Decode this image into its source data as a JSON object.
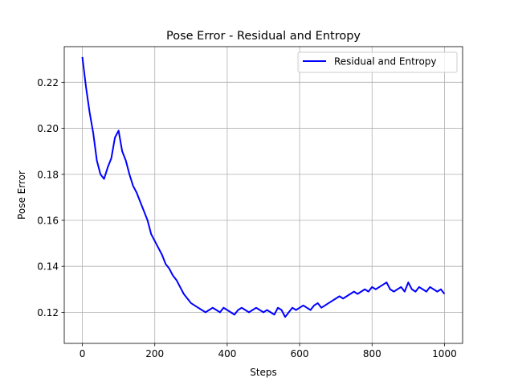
{
  "chart_data": {
    "type": "line",
    "title": "Pose Error - Residual and Entropy",
    "xlabel": "Steps",
    "ylabel": "Pose Error",
    "xlim": [
      -50,
      1050
    ],
    "ylim": [
      0.1065,
      0.2355
    ],
    "xticks": [
      0,
      200,
      400,
      600,
      800,
      1000
    ],
    "xtick_labels": [
      "0",
      "200",
      "400",
      "600",
      "800",
      "1000"
    ],
    "yticks": [
      0.12,
      0.14,
      0.16,
      0.18,
      0.2,
      0.22
    ],
    "ytick_labels": [
      "0.12",
      "0.14",
      "0.16",
      "0.18",
      "0.20",
      "0.22"
    ],
    "grid": true,
    "legend_position": "top-right",
    "series": [
      {
        "name": "Residual and Entropy",
        "color": "#0000ff",
        "x": [
          0,
          10,
          20,
          30,
          40,
          50,
          60,
          70,
          80,
          90,
          100,
          110,
          120,
          130,
          140,
          150,
          160,
          170,
          180,
          190,
          200,
          210,
          220,
          230,
          240,
          250,
          260,
          270,
          280,
          290,
          300,
          310,
          320,
          330,
          340,
          350,
          360,
          370,
          380,
          390,
          400,
          410,
          420,
          430,
          440,
          450,
          460,
          470,
          480,
          490,
          500,
          510,
          520,
          530,
          540,
          550,
          560,
          570,
          580,
          590,
          600,
          610,
          620,
          630,
          640,
          650,
          660,
          670,
          680,
          690,
          700,
          710,
          720,
          730,
          740,
          750,
          760,
          770,
          780,
          790,
          800,
          810,
          820,
          830,
          840,
          850,
          860,
          870,
          880,
          890,
          900,
          910,
          920,
          930,
          940,
          950,
          960,
          970,
          980,
          990,
          1000
        ],
        "y": [
          0.231,
          0.218,
          0.207,
          0.198,
          0.186,
          0.18,
          0.178,
          0.183,
          0.187,
          0.196,
          0.199,
          0.19,
          0.186,
          0.18,
          0.175,
          0.172,
          0.168,
          0.164,
          0.16,
          0.154,
          0.151,
          0.148,
          0.145,
          0.141,
          0.139,
          0.136,
          0.134,
          0.131,
          0.128,
          0.126,
          0.124,
          0.123,
          0.122,
          0.121,
          0.12,
          0.121,
          0.122,
          0.121,
          0.12,
          0.122,
          0.121,
          0.12,
          0.119,
          0.121,
          0.122,
          0.121,
          0.12,
          0.121,
          0.122,
          0.121,
          0.12,
          0.121,
          0.12,
          0.119,
          0.122,
          0.121,
          0.118,
          0.12,
          0.122,
          0.121,
          0.122,
          0.123,
          0.122,
          0.121,
          0.123,
          0.124,
          0.122,
          0.123,
          0.124,
          0.125,
          0.126,
          0.127,
          0.126,
          0.127,
          0.128,
          0.129,
          0.128,
          0.129,
          0.13,
          0.129,
          0.131,
          0.13,
          0.131,
          0.132,
          0.133,
          0.13,
          0.129,
          0.13,
          0.131,
          0.129,
          0.133,
          0.13,
          0.129,
          0.131,
          0.13,
          0.129,
          0.131,
          0.13,
          0.129,
          0.13,
          0.128
        ]
      }
    ]
  }
}
